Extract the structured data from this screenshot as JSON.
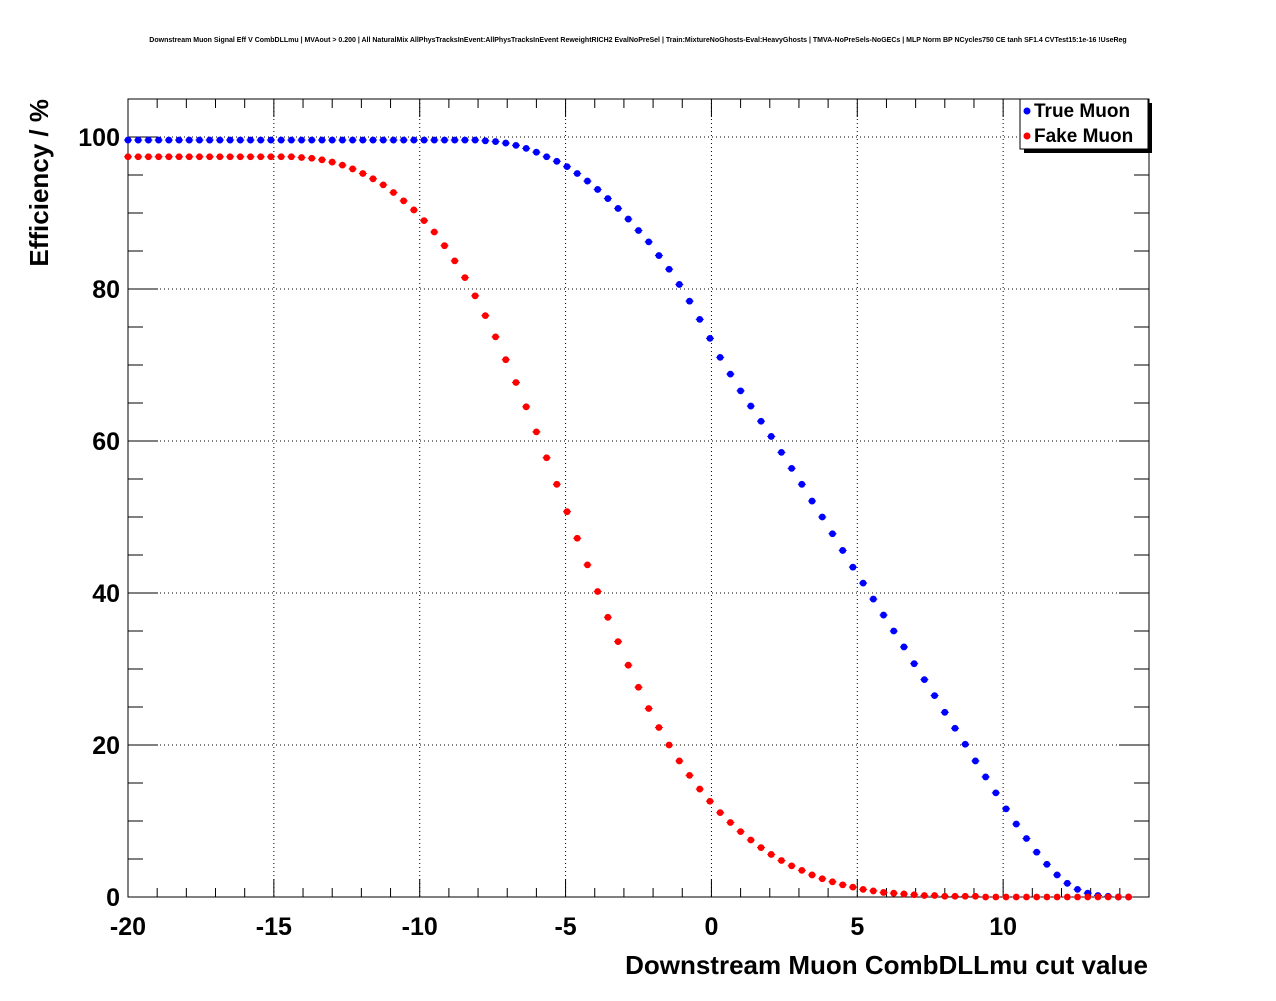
{
  "chart_data": {
    "type": "scatter",
    "title": "Downstream Muon Signal Eff V CombDLLmu | MVAout > 0.200 | All NaturalMix AllPhysTracksInEvent:AllPhysTracksInEvent ReweightRICH2 EvalNoPreSel | Train:MixtureNoGhosts-Eval:HeavyGhosts | TMVA-NoPreSels-NoGECs | MLP Norm BP NCycles750 CE tanh SF1.4 CVTest15:1e-16 !UseReg",
    "xlabel": "Downstream Muon CombDLLmu cut value",
    "ylabel": "Efficiency / %",
    "xlim": [
      -20,
      15
    ],
    "ylim": [
      0,
      105
    ],
    "x_ticks": [
      -20,
      -15,
      -10,
      -5,
      0,
      5,
      10
    ],
    "x_tick_labels": [
      "-20",
      "-15",
      "-10",
      "-5",
      "0",
      "5",
      "10"
    ],
    "y_ticks": [
      0,
      20,
      40,
      60,
      80,
      100
    ],
    "y_tick_labels": [
      "0",
      "20",
      "40",
      "60",
      "80",
      "100"
    ],
    "grid": true,
    "legend_position": "top-right",
    "series": [
      {
        "name": "True Muon",
        "color": "#0000ff",
        "x": [
          -20.0,
          -19.65,
          -19.3,
          -18.95,
          -18.6,
          -18.25,
          -17.9,
          -17.55,
          -17.2,
          -16.85,
          -16.5,
          -16.15,
          -15.8,
          -15.45,
          -15.1,
          -14.75,
          -14.4,
          -14.05,
          -13.7,
          -13.35,
          -13.0,
          -12.65,
          -12.3,
          -11.95,
          -11.6,
          -11.25,
          -10.9,
          -10.55,
          -10.2,
          -9.85,
          -9.5,
          -9.15,
          -8.8,
          -8.45,
          -8.1,
          -7.75,
          -7.4,
          -7.05,
          -6.7,
          -6.35,
          -6.0,
          -5.65,
          -5.3,
          -4.95,
          -4.6,
          -4.25,
          -3.9,
          -3.55,
          -3.2,
          -2.85,
          -2.5,
          -2.15,
          -1.8,
          -1.45,
          -1.1,
          -0.75,
          -0.4,
          -0.05,
          0.3,
          0.65,
          1.0,
          1.35,
          1.7,
          2.05,
          2.4,
          2.75,
          3.1,
          3.45,
          3.8,
          4.15,
          4.5,
          4.85,
          5.2,
          5.55,
          5.9,
          6.25,
          6.6,
          6.95,
          7.3,
          7.65,
          8.0,
          8.35,
          8.7,
          9.05,
          9.4,
          9.75,
          10.1,
          10.45,
          10.8,
          11.15,
          11.5,
          11.85,
          12.2,
          12.55,
          12.9,
          13.25,
          13.6,
          13.95,
          14.3
        ],
        "values": [
          99.6,
          99.6,
          99.6,
          99.6,
          99.6,
          99.6,
          99.6,
          99.6,
          99.6,
          99.6,
          99.6,
          99.6,
          99.6,
          99.6,
          99.6,
          99.6,
          99.6,
          99.6,
          99.6,
          99.6,
          99.6,
          99.6,
          99.6,
          99.6,
          99.6,
          99.6,
          99.6,
          99.6,
          99.6,
          99.6,
          99.6,
          99.6,
          99.6,
          99.6,
          99.6,
          99.5,
          99.4,
          99.2,
          98.9,
          98.5,
          98.0,
          97.4,
          96.8,
          96.1,
          95.2,
          94.2,
          93.1,
          91.9,
          90.6,
          89.2,
          87.7,
          86.2,
          84.4,
          82.6,
          80.6,
          78.4,
          76.0,
          73.5,
          71.0,
          68.8,
          66.6,
          64.6,
          62.6,
          60.6,
          58.5,
          56.4,
          54.3,
          52.1,
          50.0,
          47.8,
          45.6,
          43.4,
          41.3,
          39.2,
          37.1,
          35.0,
          32.9,
          30.7,
          28.6,
          26.5,
          24.3,
          22.2,
          20.1,
          17.9,
          15.8,
          13.7,
          11.6,
          9.6,
          7.7,
          5.9,
          4.3,
          2.9,
          1.8,
          1.0,
          0.5,
          0.2,
          0.1,
          0.0,
          0.0
        ]
      },
      {
        "name": "Fake Muon",
        "color": "#ff0000",
        "x": [
          -20.0,
          -19.65,
          -19.3,
          -18.95,
          -18.6,
          -18.25,
          -17.9,
          -17.55,
          -17.2,
          -16.85,
          -16.5,
          -16.15,
          -15.8,
          -15.45,
          -15.1,
          -14.75,
          -14.4,
          -14.05,
          -13.7,
          -13.35,
          -13.0,
          -12.65,
          -12.3,
          -11.95,
          -11.6,
          -11.25,
          -10.9,
          -10.55,
          -10.2,
          -9.85,
          -9.5,
          -9.15,
          -8.8,
          -8.45,
          -8.1,
          -7.75,
          -7.4,
          -7.05,
          -6.7,
          -6.35,
          -6.0,
          -5.65,
          -5.3,
          -4.95,
          -4.6,
          -4.25,
          -3.9,
          -3.55,
          -3.2,
          -2.85,
          -2.5,
          -2.15,
          -1.8,
          -1.45,
          -1.1,
          -0.75,
          -0.4,
          -0.05,
          0.3,
          0.65,
          1.0,
          1.35,
          1.7,
          2.05,
          2.4,
          2.75,
          3.1,
          3.45,
          3.8,
          4.15,
          4.5,
          4.85,
          5.2,
          5.55,
          5.9,
          6.25,
          6.6,
          6.95,
          7.3,
          7.65,
          8.0,
          8.35,
          8.7,
          9.05,
          9.4,
          9.75,
          10.1,
          10.45,
          10.8,
          11.15,
          11.5,
          11.85,
          12.2,
          12.55,
          12.9,
          13.25,
          13.6,
          13.95,
          14.3
        ],
        "values": [
          97.4,
          97.4,
          97.4,
          97.4,
          97.4,
          97.4,
          97.4,
          97.4,
          97.4,
          97.4,
          97.4,
          97.4,
          97.4,
          97.4,
          97.4,
          97.4,
          97.4,
          97.3,
          97.2,
          97.0,
          96.7,
          96.3,
          95.8,
          95.2,
          94.5,
          93.7,
          92.7,
          91.6,
          90.4,
          89.0,
          87.5,
          85.7,
          83.7,
          81.5,
          79.1,
          76.5,
          73.7,
          70.7,
          67.7,
          64.5,
          61.2,
          57.8,
          54.3,
          50.7,
          47.2,
          43.7,
          40.2,
          36.8,
          33.6,
          30.5,
          27.6,
          24.8,
          22.3,
          20.0,
          17.9,
          16.0,
          14.2,
          12.6,
          11.1,
          9.8,
          8.6,
          7.5,
          6.5,
          5.6,
          4.8,
          4.1,
          3.5,
          2.9,
          2.4,
          2.0,
          1.6,
          1.3,
          1.0,
          0.8,
          0.6,
          0.5,
          0.4,
          0.3,
          0.2,
          0.2,
          0.1,
          0.1,
          0.1,
          0.1,
          0.0,
          0.0,
          0.0,
          0.0,
          0.0,
          0.0,
          0.0,
          0.0,
          0.0,
          0.0,
          0.0,
          0.0,
          0.0,
          0.0,
          0.0
        ]
      }
    ]
  }
}
